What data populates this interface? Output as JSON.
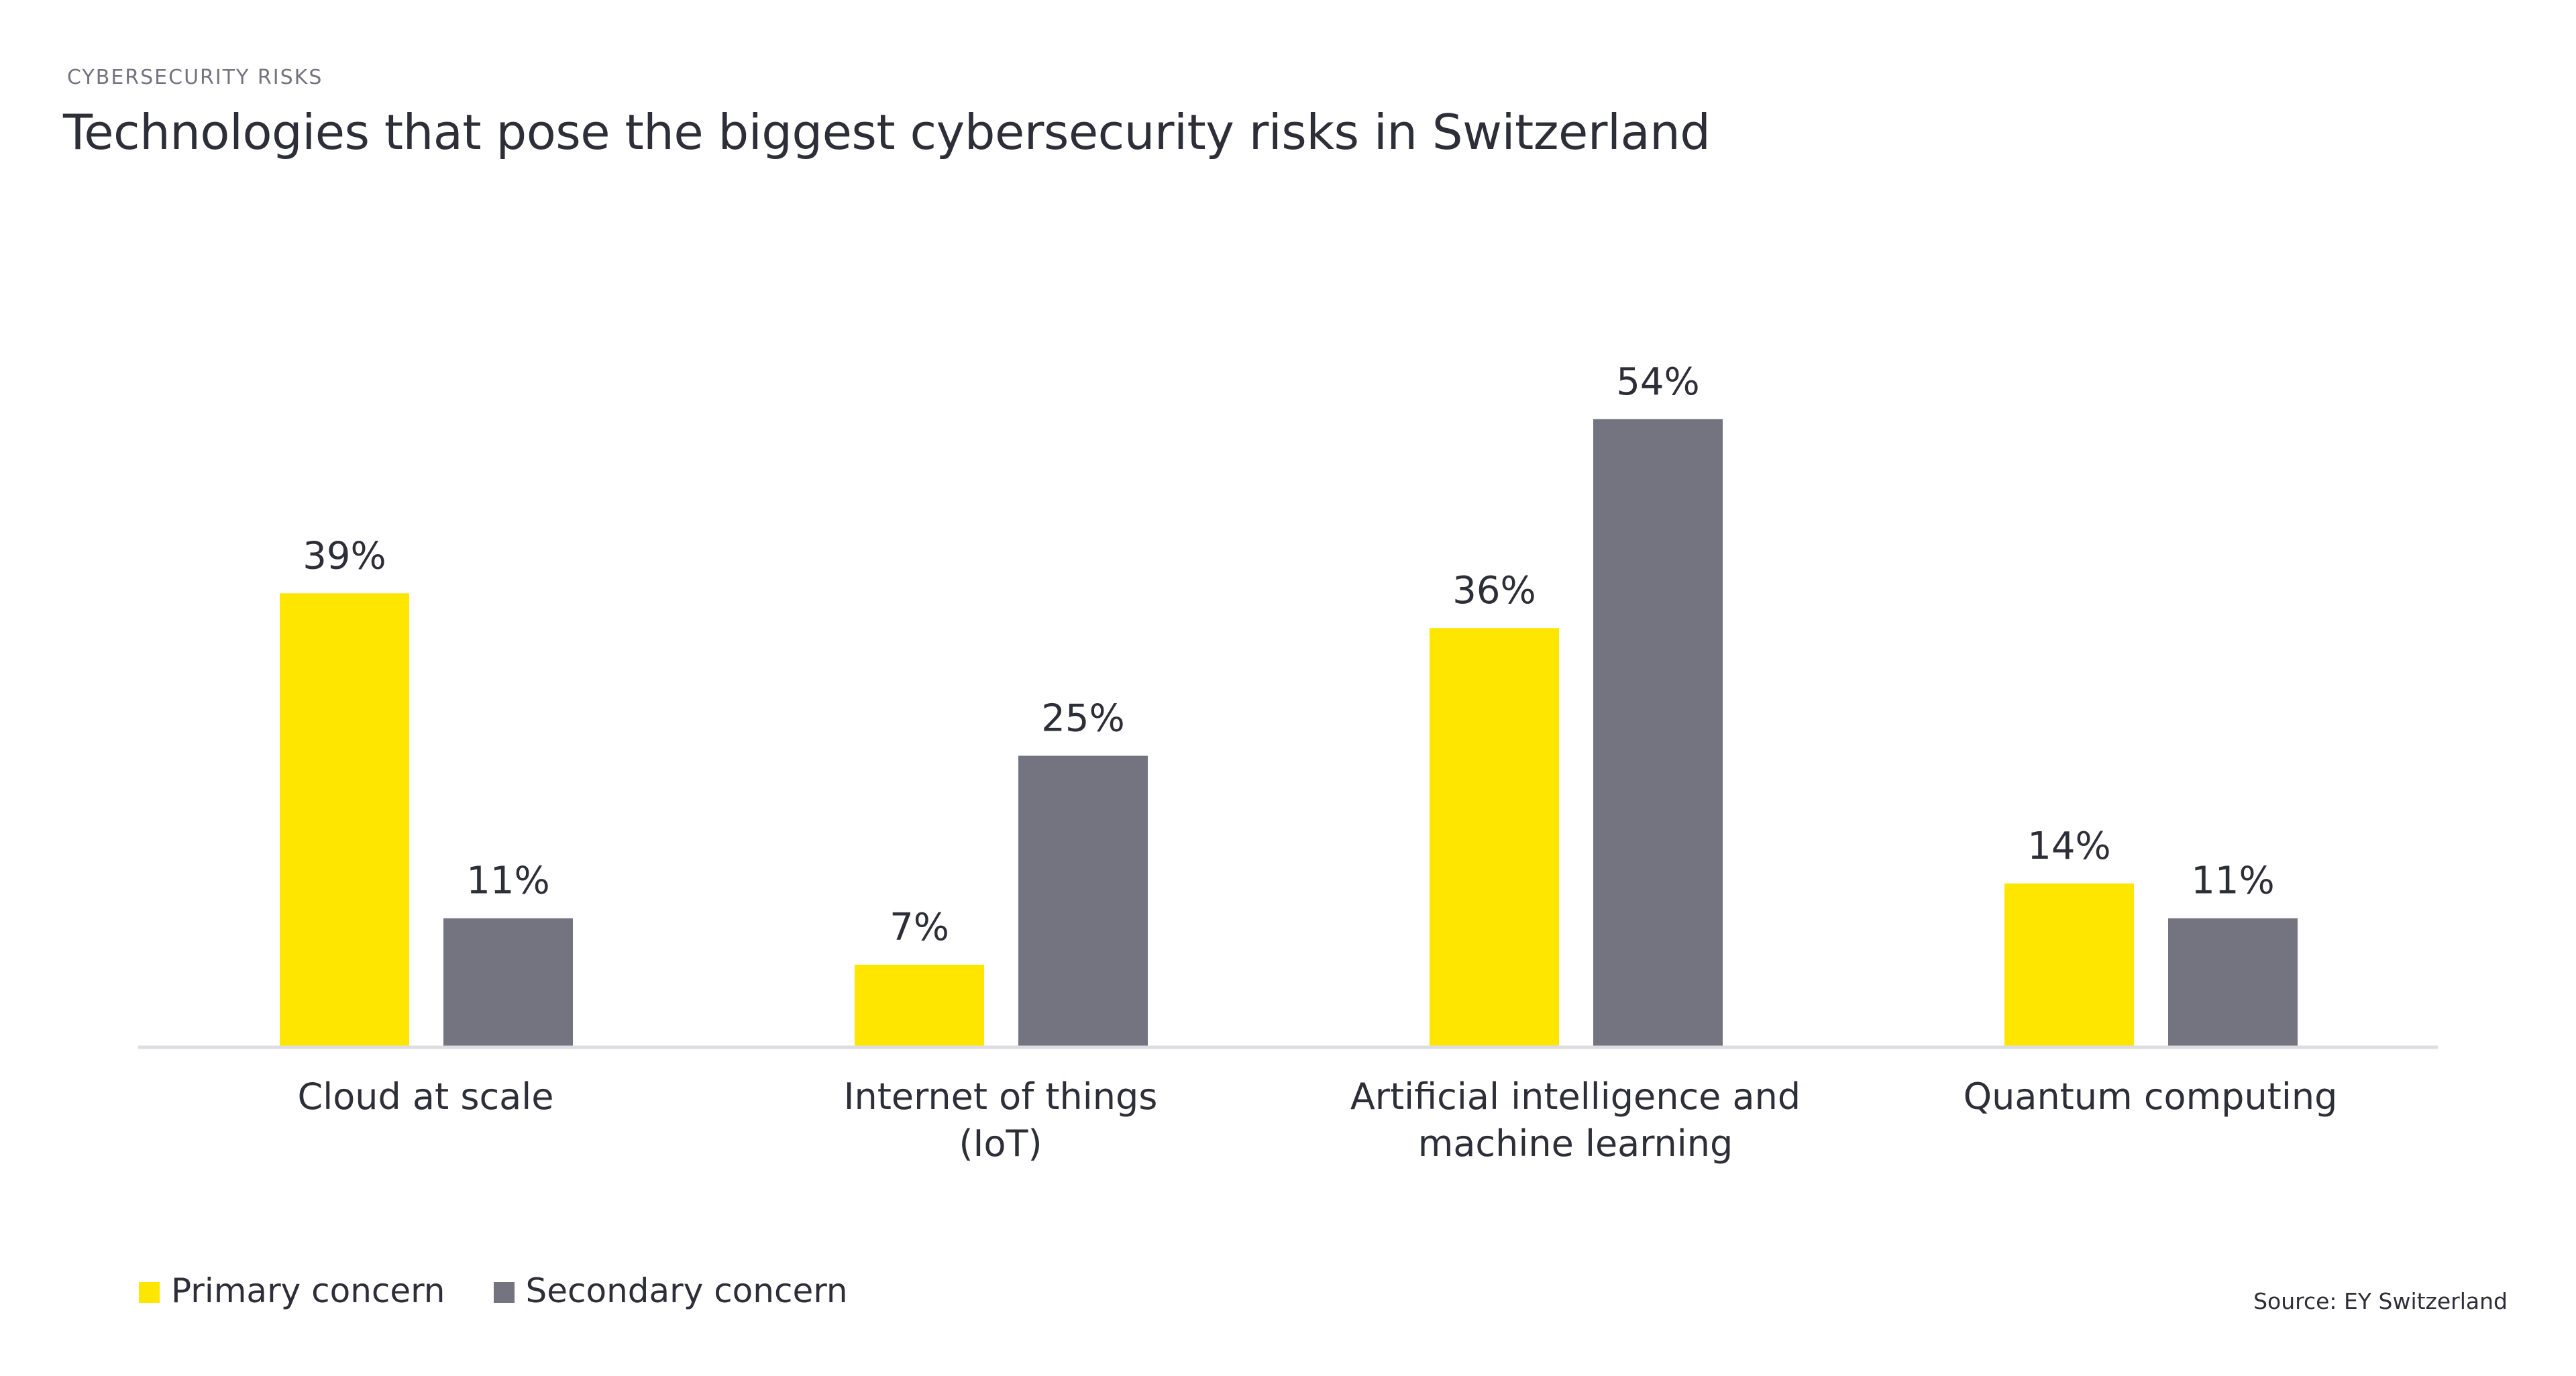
{
  "header": {
    "eyebrow": "CYBERSECURITY RISKS",
    "title": "Technologies that pose the biggest cybersecurity risks in Switzerland"
  },
  "colors": {
    "primary": "#FFE600",
    "secondary": "#747480",
    "axis": "#DCDCE2",
    "text": "#2E2E38"
  },
  "legend": {
    "items": [
      {
        "label": "Primary concern",
        "color": "#FFE600"
      },
      {
        "label": "Secondary concern",
        "color": "#747480"
      }
    ]
  },
  "footer": {
    "source": "Source: EY Switzerland"
  },
  "chart_data": {
    "type": "bar",
    "title": "Technologies that pose the biggest cybersecurity risks in Switzerland",
    "subtitle": "CYBERSECURITY RISKS",
    "xlabel": "",
    "ylabel": "",
    "ylim": [
      0,
      60
    ],
    "grid": false,
    "y_axis_visible": false,
    "legend_position": "bottom-left",
    "unit": "%",
    "categories": [
      [
        "Cloud at scale"
      ],
      [
        "Internet of things",
        "(IoT)"
      ],
      [
        "Artificial intelligence and",
        "machine learning"
      ],
      [
        "Quantum computing"
      ]
    ],
    "series": [
      {
        "name": "Primary concern",
        "color": "#FFE600",
        "values": [
          39,
          7,
          36,
          14
        ],
        "labels": [
          "39%",
          "7%",
          "36%",
          "14%"
        ]
      },
      {
        "name": "Secondary concern",
        "color": "#747480",
        "values": [
          11,
          25,
          54,
          11
        ],
        "labels": [
          "11%",
          "25%",
          "54%",
          "11%"
        ]
      }
    ],
    "source": "Source: EY Switzerland"
  }
}
